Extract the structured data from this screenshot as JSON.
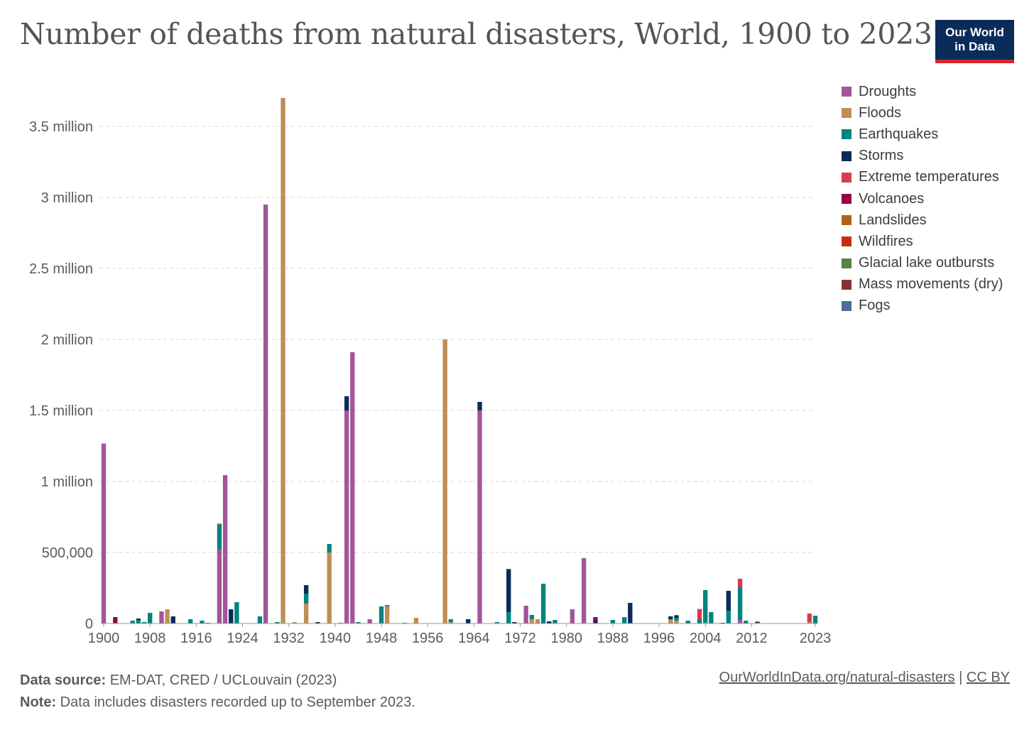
{
  "header": {
    "title": "Number of deaths from natural disasters, World, 1900 to 2023",
    "logo_line1": "Our World",
    "logo_line2": "in Data"
  },
  "footer": {
    "source_label": "Data source:",
    "source_text": "EM-DAT, CRED / UCLouvain (2023)",
    "note_label": "Note:",
    "note_text": "Data includes disasters recorded up to September 2023.",
    "link_text": "OurWorldInData.org/natural-disasters",
    "separator": "|",
    "license_text": "CC BY"
  },
  "chart_data": {
    "type": "bar",
    "stacked": true,
    "title": "Number of deaths from natural disasters, World, 1900 to 2023",
    "xlabel": "",
    "ylabel": "",
    "ylim": [
      0,
      3750000
    ],
    "yticks": [
      0,
      500000,
      1000000,
      1500000,
      2000000,
      2500000,
      3000000,
      3500000
    ],
    "ytick_labels": [
      "0",
      "500,000",
      "1 million",
      "1.5 million",
      "2 million",
      "2.5 million",
      "3 million",
      "3.5 million"
    ],
    "xticks": [
      1900,
      1908,
      1916,
      1924,
      1932,
      1940,
      1948,
      1956,
      1964,
      1972,
      1980,
      1988,
      1996,
      2004,
      2012,
      2023
    ],
    "x_range": [
      1900,
      2023
    ],
    "grid": "horizontal-dashed",
    "legend_position": "right",
    "series": [
      {
        "name": "Droughts",
        "color": "#a2559c",
        "values": {
          "1900": 1267000,
          "1910": 85000,
          "1920": 520000,
          "1921": 1045000,
          "1928": 2950000,
          "1942": 1500000,
          "1943": 1910000,
          "1946": 30000,
          "1965": 1500000,
          "1973": 125000,
          "1981": 100000,
          "1983": 460000,
          "2010": 25000
        }
      },
      {
        "name": "Floods",
        "color": "#be8e56",
        "values": {
          "1911": 100000,
          "1931": 3700000,
          "1933": 10000,
          "1935": 140000,
          "1939": 500000,
          "1949": 120000,
          "1954": 40000,
          "1959": 2000000,
          "1960": 10000,
          "1974": 30000,
          "1975": 30000,
          "1998": 30000,
          "1999": 20000,
          "2004": 5000,
          "2013": 5000,
          "2022": 10000
        }
      },
      {
        "name": "Earthquakes",
        "color": "#00847e",
        "values": {
          "1902": 5000,
          "1905": 20000,
          "1906": 25000,
          "1907": 10000,
          "1908": 75000,
          "1915": 30000,
          "1917": 20000,
          "1918": 5000,
          "1920": 180000,
          "1923": 150000,
          "1927": 50000,
          "1930": 10000,
          "1935": 70000,
          "1939": 60000,
          "1944": 10000,
          "1948": 120000,
          "1949": 5000,
          "1960": 20000,
          "1968": 10000,
          "1970": 80000,
          "1974": 30000,
          "1976": 280000,
          "1978": 25000,
          "1988": 25000,
          "1990": 45000,
          "1999": 20000,
          "2001": 20000,
          "2003": 30000,
          "2004": 230000,
          "2005": 80000,
          "2008": 90000,
          "2010": 230000,
          "2011": 20000,
          "2023": 55000
        }
      },
      {
        "name": "Storms",
        "color": "#082b59",
        "values": {
          "1906": 10000,
          "1912": 50000,
          "1922": 100000,
          "1935": 60000,
          "1937": 10000,
          "1942": 100000,
          "1963": 30000,
          "1965": 60000,
          "1970": 300000,
          "1971": 10000,
          "1977": 15000,
          "1985": 20000,
          "1991": 145000,
          "1998": 20000,
          "1999": 15000,
          "2007": 5000,
          "2008": 140000,
          "2013": 8000
        }
      },
      {
        "name": "Extreme temperatures",
        "color": "#d73c50",
        "values": {
          "2003": 72000,
          "2010": 60000,
          "2022": 60000
        }
      },
      {
        "name": "Volcanoes",
        "color": "#970046",
        "values": {
          "1902": 40000,
          "1985": 25000
        }
      },
      {
        "name": "Landslides",
        "color": "#b16214",
        "values": {
          "1920": 3000,
          "1949": 5000,
          "1999": 5000
        }
      },
      {
        "name": "Wildfires",
        "color": "#c52f10",
        "values": {}
      },
      {
        "name": "Glacial lake outbursts",
        "color": "#578145",
        "values": {
          "1941": 5000,
          "1970": 5000
        }
      },
      {
        "name": "Mass movements (dry)",
        "color": "#883039",
        "values": {}
      },
      {
        "name": "Fogs",
        "color": "#4c6a9c",
        "values": {
          "1952": 5000
        }
      }
    ]
  }
}
